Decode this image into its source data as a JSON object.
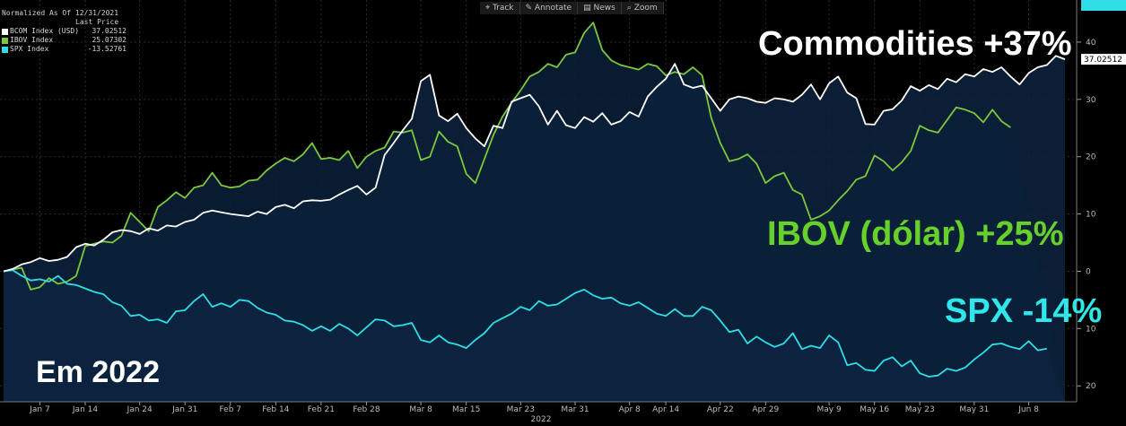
{
  "toolbar": {
    "items": [
      "Track",
      "Annotate",
      "News",
      "Zoom"
    ]
  },
  "legend": {
    "title": "Normalized As Of 12/31/2021",
    "subtitle": "Last Price",
    "entries": [
      {
        "name": "BCOM Index (USD)",
        "value": "37.02512",
        "color": "#ffffff"
      },
      {
        "name": "IBOV Index",
        "value": "25.07302",
        "color": "#7cc83a"
      },
      {
        "name": "SPX Index",
        "value": "-13.52761",
        "color": "#2fdde6"
      }
    ]
  },
  "annotations": {
    "commodities": "Commodities +37%",
    "ibov": "IBOV (dólar) +25%",
    "spx": "SPX -14%",
    "year": "Em 2022"
  },
  "chart_data": {
    "type": "line",
    "title": "",
    "xlabel": "2022",
    "ylabel": "",
    "ylim": [
      -22,
      45
    ],
    "yticks": [
      40,
      30,
      20,
      10,
      0,
      -10,
      -20
    ],
    "ytick_labels": [
      "40",
      "30",
      "20",
      "10",
      "0",
      "10",
      "20"
    ],
    "grid": true,
    "legend_position": "top-left",
    "x_tick_labels": [
      "Jan 7",
      "Jan 14",
      "Jan 24",
      "Jan 31",
      "Feb 7",
      "Feb 14",
      "Feb 21",
      "Feb 28",
      "Mar 8",
      "Mar 15",
      "Mar 23",
      "Mar 31",
      "Apr 8",
      "Apr 14",
      "Apr 22",
      "Apr 29",
      "May 9",
      "May 16",
      "May 23",
      "May 31",
      "Jun 8"
    ],
    "x_tick_positions": [
      4,
      9,
      15,
      20,
      25,
      30,
      35,
      40,
      46,
      51,
      57,
      63,
      69,
      73,
      79,
      84,
      91,
      96,
      101,
      107,
      113
    ],
    "last_labels": [
      "37.02512",
      "25.07302",
      "-13.52761"
    ],
    "series": [
      {
        "name": "BCOM Index (USD)",
        "color": "#ffffff",
        "values": [
          0,
          0.4,
          1.2,
          1.6,
          2.3,
          1.8,
          2.0,
          2.5,
          4.2,
          4.8,
          4.5,
          5.5,
          6.8,
          7.2,
          7.0,
          6.5,
          7.5,
          7.1,
          8.0,
          7.8,
          8.6,
          9.0,
          10.2,
          10.6,
          10.3,
          10.0,
          9.8,
          9.6,
          10.4,
          10.0,
          11.2,
          11.6,
          11.0,
          12.2,
          12.4,
          12.3,
          12.5,
          13.4,
          14.2,
          14.9,
          13.4,
          14.6,
          20.3,
          22.4,
          24.6,
          26.6,
          33.2,
          34.3,
          27.2,
          26.2,
          27.5,
          25.0,
          23.2,
          21.8,
          25.4,
          25.0,
          29.6,
          30.2,
          30.8,
          28.8,
          25.6,
          28.0,
          25.5,
          25.0,
          26.9,
          26.1,
          27.6,
          25.6,
          26.2,
          27.8,
          27.0,
          30.5,
          32.2,
          33.6,
          36.2,
          32.6,
          32.0,
          32.4,
          30.2,
          28.0,
          30.0,
          30.5,
          30.2,
          29.6,
          29.4,
          30.2,
          30.0,
          29.6,
          30.8,
          32.6,
          30.0,
          32.8,
          34.0,
          31.2,
          30.2,
          25.7,
          25.6,
          28.0,
          28.3,
          29.8,
          32.3,
          31.5,
          32.5,
          31.8,
          33.6,
          33.0,
          34.4,
          34.0,
          35.3,
          34.8,
          35.6,
          34.0,
          32.6,
          34.6,
          35.6,
          36.0,
          37.6,
          37.0
        ]
      },
      {
        "name": "IBOV Index",
        "color": "#7cc83a",
        "values": [
          0,
          0.3,
          0.6,
          -3.2,
          -2.8,
          -1.2,
          -2.2,
          -1.8,
          -0.8,
          4.4,
          4.8,
          5.2,
          5.0,
          6.2,
          10.2,
          8.6,
          7.0,
          11.2,
          12.4,
          13.8,
          12.8,
          14.6,
          15.0,
          17.2,
          15.0,
          14.6,
          14.8,
          15.8,
          16.0,
          17.6,
          18.8,
          19.8,
          19.2,
          20.4,
          22.4,
          19.6,
          19.8,
          19.4,
          21.0,
          18.0,
          20.0,
          21.0,
          21.6,
          24.4,
          24.2,
          24.6,
          19.4,
          20.0,
          24.4,
          22.6,
          21.8,
          17.0,
          15.4,
          19.6,
          23.8,
          27.0,
          29.4,
          31.6,
          34.0,
          34.8,
          36.2,
          35.6,
          37.8,
          38.2,
          41.6,
          43.4,
          38.6,
          36.8,
          36.0,
          35.6,
          35.2,
          36.2,
          35.8,
          34.2,
          34.8,
          34.4,
          35.6,
          34.2,
          26.8,
          22.4,
          19.2,
          19.6,
          20.4,
          18.8,
          15.4,
          16.6,
          17.2,
          14.2,
          13.4,
          9.0,
          9.6,
          10.6,
          12.4,
          14.0,
          16.0,
          16.6,
          20.2,
          19.2,
          17.6,
          19.0,
          21.0,
          25.4,
          24.6,
          24.2,
          26.4,
          28.6,
          28.2,
          27.6,
          26.0,
          28.2,
          26.2,
          25.1
        ]
      },
      {
        "name": "SPX Index",
        "color": "#2fdde6",
        "values": [
          0,
          0.2,
          -0.8,
          -1.6,
          -1.4,
          -1.8,
          -0.8,
          -2.2,
          -2.4,
          -3.0,
          -3.6,
          -4.0,
          -5.4,
          -6.0,
          -7.8,
          -7.6,
          -8.6,
          -8.4,
          -9.0,
          -7.0,
          -6.8,
          -5.2,
          -4.0,
          -6.2,
          -5.6,
          -6.2,
          -5.0,
          -5.2,
          -6.4,
          -7.2,
          -7.6,
          -8.6,
          -8.8,
          -9.4,
          -10.4,
          -9.6,
          -10.4,
          -9.2,
          -10.0,
          -11.2,
          -9.8,
          -8.4,
          -8.6,
          -9.6,
          -9.4,
          -9.0,
          -12.0,
          -12.4,
          -11.2,
          -12.4,
          -12.8,
          -13.4,
          -12.0,
          -10.8,
          -9.0,
          -8.2,
          -7.4,
          -6.2,
          -6.8,
          -5.2,
          -6.0,
          -5.8,
          -4.8,
          -3.8,
          -3.2,
          -4.2,
          -4.8,
          -4.6,
          -5.6,
          -6.0,
          -5.4,
          -6.4,
          -7.4,
          -7.8,
          -6.6,
          -7.8,
          -7.8,
          -6.2,
          -6.8,
          -8.6,
          -10.6,
          -10.2,
          -12.6,
          -11.4,
          -12.4,
          -13.2,
          -12.6,
          -10.8,
          -13.6,
          -13.0,
          -13.4,
          -11.2,
          -12.4,
          -16.4,
          -16.0,
          -17.2,
          -17.4,
          -15.6,
          -15.0,
          -16.6,
          -15.6,
          -17.8,
          -18.4,
          -18.2,
          -17.0,
          -17.4,
          -16.8,
          -15.4,
          -14.2,
          -12.8,
          -12.6,
          -13.2,
          -13.6,
          -12.2,
          -13.8,
          -13.5
        ]
      }
    ]
  }
}
